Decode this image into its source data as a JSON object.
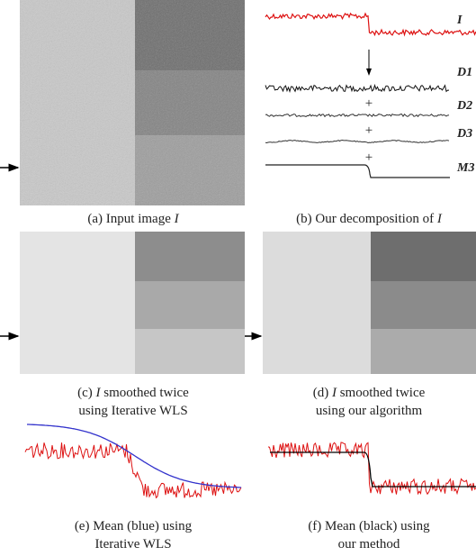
{
  "panels": {
    "a": {
      "caption": "(a) Input image",
      "symbol": "I"
    },
    "b": {
      "caption": "(b) Our decomposition of",
      "symbol": "I",
      "labels": [
        "I",
        "D1",
        "D2",
        "D3",
        "M3"
      ],
      "plus": "+"
    },
    "c": {
      "symbol": "I",
      "line1": "smoothed twice",
      "line2": "using Iterative WLS",
      "prefix": "(c)"
    },
    "d": {
      "symbol": "I",
      "line1": "smoothed twice",
      "line2": "using our algorithm",
      "prefix": "(d)"
    },
    "e": {
      "line1": "(e) Mean (blue) using",
      "line2": "Iterative WLS"
    },
    "f": {
      "line1": "(f) Mean (black) using",
      "line2": "our method"
    }
  }
}
